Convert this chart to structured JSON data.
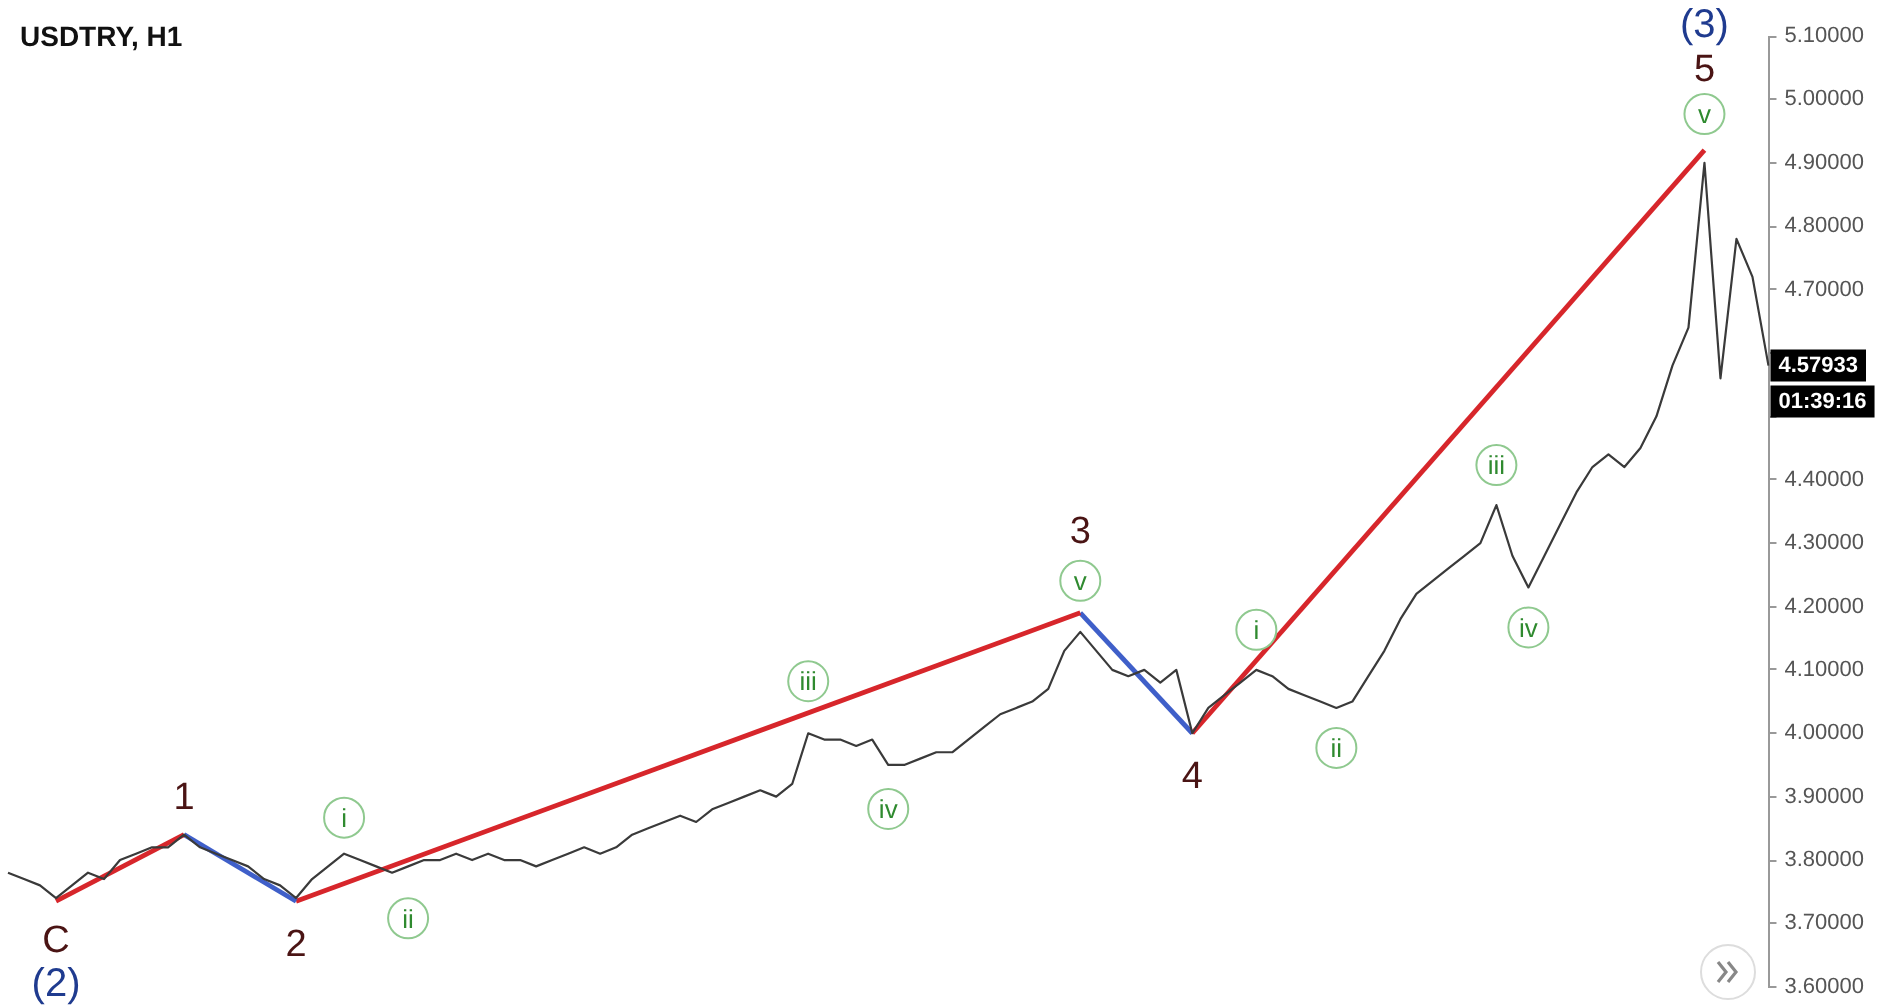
{
  "chart_data": {
    "type": "line",
    "title": "USDTRY, H1",
    "categories": [
      null,
      null,
      null,
      null,
      null,
      null,
      null,
      null,
      null,
      null,
      null,
      null,
      null,
      null,
      null,
      null,
      null,
      null,
      null,
      null,
      null,
      null,
      null,
      null,
      null,
      null,
      null,
      null,
      null,
      null,
      null,
      null,
      null,
      null,
      null,
      null,
      null,
      null,
      null,
      null,
      null,
      null,
      null,
      null,
      null,
      null,
      null,
      null,
      null,
      null,
      null,
      null,
      null,
      null,
      null,
      null,
      null,
      null,
      null,
      null,
      null,
      null,
      null,
      null,
      null,
      null,
      null,
      null,
      null,
      null,
      null,
      null,
      null,
      null,
      null,
      null,
      null,
      null,
      null,
      null,
      null,
      null,
      null,
      null,
      null,
      null,
      null,
      null,
      null,
      null,
      null,
      null,
      null,
      null,
      null,
      null,
      null,
      null,
      null,
      null,
      null,
      null,
      null,
      null,
      null,
      null,
      null,
      null,
      null,
      null,
      null
    ],
    "series": [
      {
        "color": "#3a3a3a",
        "values": [
          3.78,
          3.77,
          3.76,
          3.74,
          3.76,
          3.78,
          3.77,
          3.8,
          3.81,
          3.82,
          3.82,
          3.84,
          3.82,
          3.81,
          3.8,
          3.79,
          3.77,
          3.76,
          3.74,
          3.77,
          3.79,
          3.81,
          3.8,
          3.79,
          3.78,
          3.79,
          3.8,
          3.8,
          3.81,
          3.8,
          3.81,
          3.8,
          3.8,
          3.79,
          3.8,
          3.81,
          3.82,
          3.81,
          3.82,
          3.84,
          3.85,
          3.86,
          3.87,
          3.86,
          3.88,
          3.89,
          3.9,
          3.91,
          3.9,
          3.92,
          4.0,
          3.99,
          3.99,
          3.98,
          3.99,
          3.95,
          3.95,
          3.96,
          3.97,
          3.97,
          3.99,
          4.01,
          4.03,
          4.04,
          4.05,
          4.07,
          4.13,
          4.16,
          4.13,
          4.1,
          4.09,
          4.1,
          4.08,
          4.1,
          4.0,
          4.04,
          4.06,
          4.08,
          4.1,
          4.09,
          4.07,
          4.06,
          4.05,
          4.04,
          4.05,
          4.09,
          4.13,
          4.18,
          4.22,
          4.24,
          4.26,
          4.28,
          4.3,
          4.36,
          4.28,
          4.23,
          4.28,
          4.33,
          4.38,
          4.42,
          4.44,
          4.42,
          4.45,
          4.5,
          4.58,
          4.64,
          4.9,
          4.56,
          4.78,
          4.72,
          4.58
        ]
      },
      {
        "color": "#d7262b",
        "values": [
          null,
          null,
          null,
          3.735,
          null,
          null,
          null,
          null,
          null,
          null,
          null,
          3.84,
          null,
          null,
          null,
          null,
          null,
          null,
          null,
          null,
          null,
          null,
          null,
          null,
          null,
          null,
          null,
          null,
          null,
          null,
          null,
          null,
          null,
          null,
          null,
          null,
          null,
          null,
          null,
          null,
          null,
          null,
          null,
          null,
          null,
          null,
          null,
          null,
          null,
          null,
          null,
          null,
          null,
          null,
          null,
          null,
          null,
          null,
          null,
          null,
          null,
          null,
          null,
          null,
          null,
          null,
          null,
          null,
          null,
          null,
          null,
          null,
          null,
          null,
          null,
          null,
          null,
          null,
          null,
          null,
          null,
          null,
          null,
          null,
          null,
          null,
          null,
          null,
          null,
          null,
          null,
          null,
          null,
          null,
          null,
          null,
          null,
          null,
          null,
          null,
          null,
          null,
          null,
          null,
          null,
          null,
          null,
          null,
          null,
          null,
          null
        ]
      },
      {
        "color": "#3f5fc9",
        "values": [
          null,
          null,
          null,
          null,
          null,
          null,
          null,
          null,
          null,
          null,
          null,
          3.84,
          null,
          null,
          null,
          null,
          null,
          null,
          3.735,
          null,
          null,
          null,
          null,
          null,
          null,
          null,
          null,
          null,
          null,
          null,
          null,
          null,
          null,
          null,
          null,
          null,
          null,
          null,
          null,
          null,
          null,
          null,
          null,
          null,
          null,
          null,
          null,
          null,
          null,
          null,
          null,
          null,
          null,
          null,
          null,
          null,
          null,
          null,
          null,
          null,
          null,
          null,
          null,
          null,
          null,
          null,
          null,
          null,
          null,
          null,
          null,
          null,
          null,
          null,
          null,
          null,
          null,
          null,
          null,
          null,
          null,
          null,
          null,
          null,
          null,
          null,
          null,
          null,
          null,
          null,
          null,
          null,
          null,
          null,
          null,
          null,
          null,
          null,
          null,
          null,
          null,
          null,
          null,
          null,
          null,
          null,
          null,
          null,
          null,
          null,
          null
        ]
      },
      {
        "color": "#d7262b",
        "values": [
          null,
          null,
          null,
          null,
          null,
          null,
          null,
          null,
          null,
          null,
          null,
          null,
          null,
          null,
          null,
          null,
          null,
          null,
          3.735,
          null,
          null,
          null,
          null,
          null,
          null,
          null,
          null,
          null,
          null,
          null,
          null,
          null,
          null,
          null,
          null,
          null,
          null,
          null,
          null,
          null,
          null,
          null,
          null,
          null,
          null,
          null,
          null,
          null,
          null,
          null,
          null,
          null,
          null,
          null,
          null,
          null,
          null,
          null,
          null,
          null,
          null,
          null,
          null,
          null,
          null,
          null,
          null,
          4.19,
          null,
          null,
          null,
          null,
          null,
          null,
          null,
          null,
          null,
          null,
          null,
          null,
          null,
          null,
          null,
          null,
          null,
          null,
          null,
          null,
          null,
          null,
          null,
          null,
          null,
          null,
          null,
          null,
          null,
          null,
          null,
          null,
          null,
          null,
          null,
          null,
          null,
          null,
          null,
          null,
          null,
          null,
          null
        ]
      },
      {
        "color": "#3f5fc9",
        "values": [
          null,
          null,
          null,
          null,
          null,
          null,
          null,
          null,
          null,
          null,
          null,
          null,
          null,
          null,
          null,
          null,
          null,
          null,
          null,
          null,
          null,
          null,
          null,
          null,
          null,
          null,
          null,
          null,
          null,
          null,
          null,
          null,
          null,
          null,
          null,
          null,
          null,
          null,
          null,
          null,
          null,
          null,
          null,
          null,
          null,
          null,
          null,
          null,
          null,
          null,
          null,
          null,
          null,
          null,
          null,
          null,
          null,
          null,
          null,
          null,
          null,
          null,
          null,
          null,
          null,
          null,
          null,
          4.19,
          null,
          null,
          null,
          null,
          null,
          null,
          4.0,
          null,
          null,
          null,
          null,
          null,
          null,
          null,
          null,
          null,
          null,
          null,
          null,
          null,
          null,
          null,
          null,
          null,
          null,
          null,
          null,
          null,
          null,
          null,
          null,
          null,
          null,
          null,
          null,
          null,
          null,
          null,
          null,
          null,
          null,
          null,
          null
        ]
      },
      {
        "color": "#d7262b",
        "values": [
          null,
          null,
          null,
          null,
          null,
          null,
          null,
          null,
          null,
          null,
          null,
          null,
          null,
          null,
          null,
          null,
          null,
          null,
          null,
          null,
          null,
          null,
          null,
          null,
          null,
          null,
          null,
          null,
          null,
          null,
          null,
          null,
          null,
          null,
          null,
          null,
          null,
          null,
          null,
          null,
          null,
          null,
          null,
          null,
          null,
          null,
          null,
          null,
          null,
          null,
          null,
          null,
          null,
          null,
          null,
          null,
          null,
          null,
          null,
          null,
          null,
          null,
          null,
          null,
          null,
          null,
          null,
          null,
          null,
          null,
          null,
          null,
          null,
          null,
          4.0,
          null,
          null,
          null,
          null,
          null,
          null,
          null,
          null,
          null,
          null,
          null,
          null,
          null,
          null,
          null,
          null,
          null,
          null,
          null,
          null,
          null,
          null,
          null,
          null,
          null,
          null,
          null,
          null,
          null,
          null,
          null,
          4.92,
          null,
          null,
          null,
          null
        ]
      }
    ],
    "ylim": [
      3.6,
      5.1
    ],
    "yticks": [
      {
        "value": 3.6,
        "label": "3.60000"
      },
      {
        "value": 3.7,
        "label": "3.70000"
      },
      {
        "value": 3.8,
        "label": "3.80000"
      },
      {
        "value": 3.9,
        "label": "3.90000"
      },
      {
        "value": 4.0,
        "label": "4.00000"
      },
      {
        "value": 4.1,
        "label": "4.10000"
      },
      {
        "value": 4.2,
        "label": "4.20000"
      },
      {
        "value": 4.3,
        "label": "4.30000"
      },
      {
        "value": 4.4,
        "label": "4.40000"
      },
      {
        "value": 4.5,
        "label": null
      },
      {
        "value": 4.6,
        "label": null
      },
      {
        "value": 4.7,
        "label": "4.70000"
      },
      {
        "value": 4.8,
        "label": "4.80000"
      },
      {
        "value": 4.9,
        "label": "4.90000"
      },
      {
        "value": 5.0,
        "label": "5.00000"
      },
      {
        "value": 5.1,
        "label": "5.10000"
      }
    ],
    "tick_labels": "y",
    "grid": false,
    "legend": false,
    "marker": "none",
    "line_style": "solid",
    "annotations": [
      "C",
      "(2)",
      "1",
      "2",
      "i",
      "ii",
      "iii",
      "iv",
      "v",
      "3",
      "4",
      "i",
      "ii",
      "iii",
      "iv",
      "v",
      "5",
      "(3)",
      "4.57933",
      "01:39:16"
    ]
  }
}
